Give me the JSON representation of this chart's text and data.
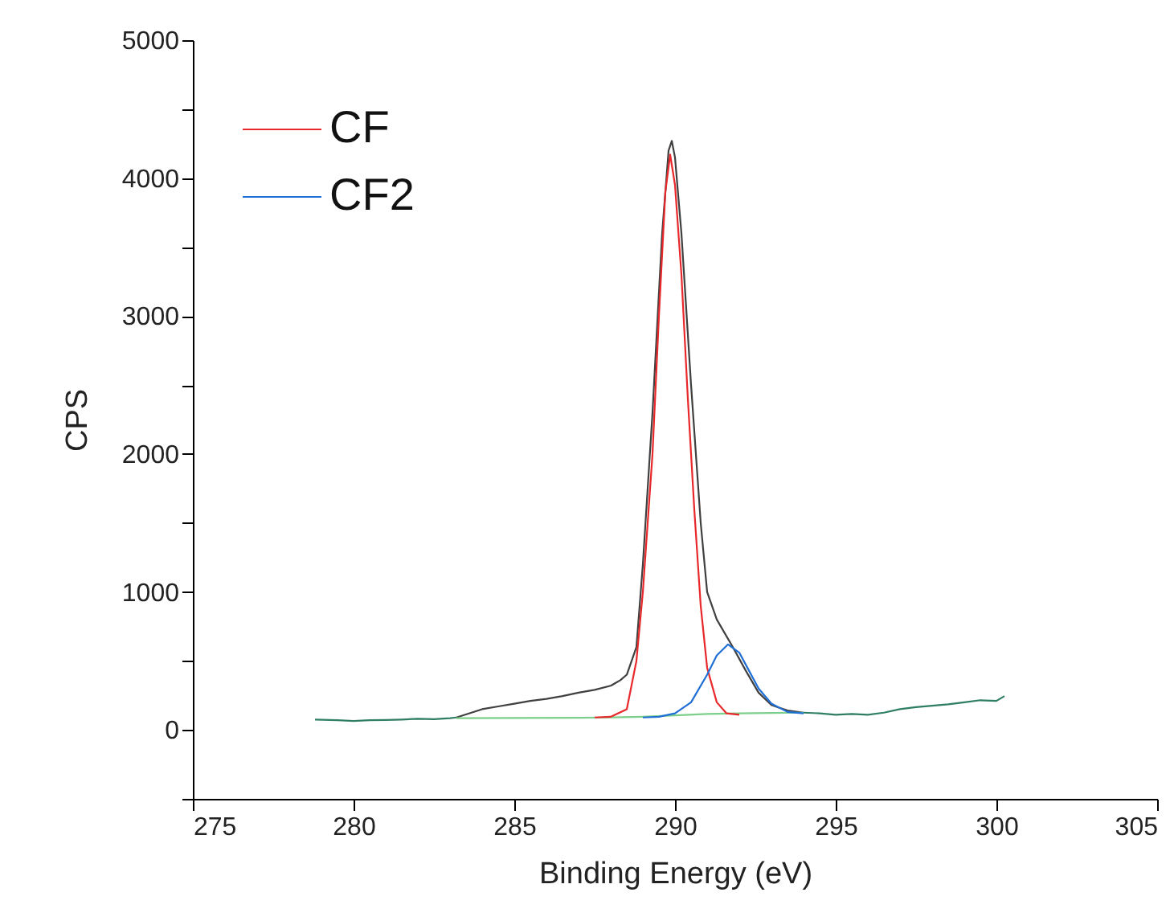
{
  "chart_data": {
    "type": "line",
    "xlabel": "Binding Energy (eV)",
    "ylabel": "CPS",
    "xlim": [
      275,
      305
    ],
    "xticks": [
      275,
      280,
      285,
      290,
      295,
      300,
      305
    ],
    "ylim": [
      -500,
      5000
    ],
    "yticks": [
      {
        "value": -500,
        "label": null
      },
      0,
      {
        "value": 500,
        "label": null
      },
      1000,
      {
        "value": 1500,
        "label": null
      },
      2000,
      {
        "value": 2500,
        "label": null
      },
      3000,
      {
        "value": 3500,
        "label": null
      },
      4000,
      {
        "value": 4500,
        "label": null
      },
      5000
    ],
    "grid": false,
    "legend": "top left",
    "marker": "none",
    "line_style": "solid",
    "series": [
      {
        "color": "#2e7d64",
        "x": [
          278.8,
          279.5,
          280,
          280.5,
          281,
          281.5,
          282,
          282.5,
          283,
          283.2,
          283.5,
          294,
          294.5,
          295,
          295.5,
          296,
          296.5,
          297,
          297.5,
          298,
          298.5,
          299,
          299.5,
          300,
          300.25
        ],
        "values": [
          75,
          70,
          65,
          70,
          72,
          75,
          80,
          78,
          85,
          90,
          null,
          125,
          120,
          110,
          115,
          110,
          125,
          150,
          165,
          175,
          185,
          200,
          215,
          210,
          245
        ]
      },
      {
        "color": "#404040",
        "x": [
          283.2,
          284,
          284.5,
          285,
          285.5,
          286,
          286.5,
          287,
          287.5,
          288,
          288.3,
          288.5,
          288.8,
          289,
          289.3,
          289.6,
          289.8,
          289.9,
          290,
          290.2,
          290.5,
          290.8,
          291,
          291.3,
          291.5,
          291.8,
          292.2,
          292.6,
          293,
          293.5,
          294
        ],
        "values": [
          90,
          150,
          170,
          190,
          210,
          225,
          245,
          270,
          290,
          320,
          360,
          400,
          600,
          1200,
          2300,
          3600,
          4200,
          4270,
          4150,
          3600,
          2500,
          1500,
          1000,
          800,
          720,
          600,
          430,
          270,
          180,
          140,
          125
        ]
      },
      {
        "color": "#7ccf8a",
        "x": [
          283.2,
          285,
          287,
          288,
          289,
          290,
          291,
          292,
          293,
          294
        ],
        "values": [
          85,
          86,
          88,
          90,
          95,
          105,
          115,
          120,
          123,
          125
        ]
      },
      {
        "name": "CF",
        "color": "#e8282b",
        "x": [
          287.5,
          288,
          288.5,
          288.8,
          289,
          289.3,
          289.5,
          289.7,
          289.85,
          290,
          290.2,
          290.4,
          290.6,
          290.8,
          291,
          291.3,
          291.6,
          292
        ],
        "values": [
          90,
          95,
          150,
          500,
          1000,
          2000,
          3000,
          3900,
          4170,
          3950,
          3300,
          2400,
          1600,
          900,
          450,
          200,
          120,
          110
        ]
      },
      {
        "name": "CF2",
        "color": "#1f6fd6",
        "x": [
          289,
          289.5,
          290,
          290.5,
          291,
          291.3,
          291.65,
          292,
          292.3,
          292.6,
          293,
          293.5,
          294
        ],
        "values": [
          90,
          95,
          120,
          200,
          400,
          540,
          620,
          560,
          430,
          300,
          190,
          130,
          120
        ]
      }
    ]
  }
}
